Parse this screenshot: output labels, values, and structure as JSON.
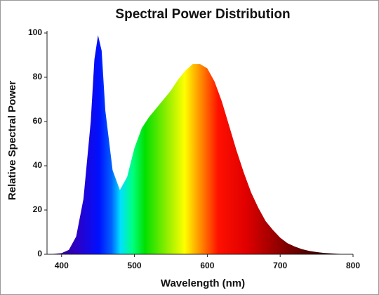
{
  "chart_data": {
    "type": "area",
    "title": "Spectral Power Distribution",
    "x_label": "Wavelength (nm)",
    "y_label": "Relative Spectral Power",
    "x": [
      380,
      390,
      400,
      410,
      420,
      430,
      440,
      445,
      450,
      455,
      460,
      470,
      480,
      490,
      500,
      510,
      520,
      530,
      540,
      550,
      560,
      570,
      580,
      590,
      600,
      610,
      620,
      630,
      640,
      650,
      660,
      670,
      680,
      690,
      700,
      710,
      720,
      730,
      740,
      750,
      760,
      770,
      780,
      790,
      800
    ],
    "y": [
      0,
      0.2,
      0.5,
      2,
      8,
      25,
      60,
      88,
      99,
      92,
      65,
      38,
      29,
      35,
      48,
      57,
      62,
      66,
      70,
      74,
      79,
      83,
      86,
      86,
      84,
      78,
      69,
      58,
      47,
      37,
      28,
      21,
      15,
      11,
      7.5,
      5,
      3.5,
      2.3,
      1.5,
      1,
      0.6,
      0.4,
      0.2,
      0.1,
      0.05
    ],
    "xlim": [
      380,
      800
    ],
    "ylim": [
      0,
      100
    ],
    "xticks": [
      400,
      500,
      600,
      700,
      800
    ],
    "yticks": [
      0,
      20,
      40,
      60,
      80,
      100
    ],
    "grid": false
  }
}
